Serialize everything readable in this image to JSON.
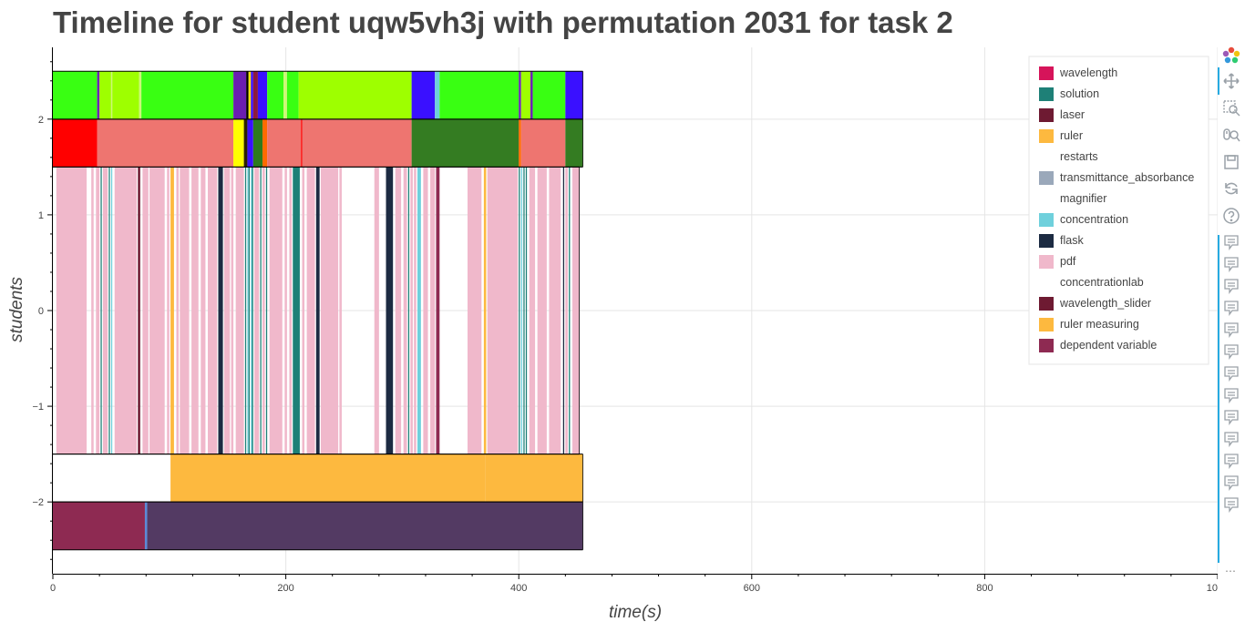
{
  "chart_data": {
    "type": "timeline",
    "title": "Timeline for student uqw5vh3j with permutation 2031 for task 2",
    "xlabel": "time(s)",
    "ylabel": "students",
    "xlim": [
      0,
      1000
    ],
    "ylim": [
      -2.75,
      2.75
    ],
    "xticks": [
      0,
      200,
      400,
      600,
      800,
      1000
    ],
    "yticks": [
      -2,
      -1,
      0,
      1,
      2
    ],
    "grid": true,
    "legend_position": "top-right",
    "legend": [
      {
        "name": "wavelength",
        "color": "#d6145a"
      },
      {
        "name": "solution",
        "color": "#1e8077"
      },
      {
        "name": "laser",
        "color": "#6e1a32"
      },
      {
        "name": "ruler",
        "color": "#fdb93f"
      },
      {
        "name": "restarts",
        "color": ""
      },
      {
        "name": "transmittance_absorbance",
        "color": "#9aa8ba"
      },
      {
        "name": "magnifier",
        "color": ""
      },
      {
        "name": "concentration",
        "color": "#6fd0dc"
      },
      {
        "name": "flask",
        "color": "#1c2b42"
      },
      {
        "name": "pdf",
        "color": "#f0b8cb"
      },
      {
        "name": "concentrationlab",
        "color": ""
      },
      {
        "name": "wavelength_slider",
        "color": "#6e1a32"
      },
      {
        "name": "ruler measuring",
        "color": "#fdb93f"
      },
      {
        "name": "dependent variable",
        "color": "#8e2a52"
      }
    ],
    "rows": [
      {
        "y_range": [
          2,
          2.5
        ],
        "segments": [
          {
            "start": 0,
            "end": 38,
            "color": "#39ff12"
          },
          {
            "start": 38,
            "end": 40,
            "color": "#6e22b8"
          },
          {
            "start": 40,
            "end": 50,
            "color": "#9eff00"
          },
          {
            "start": 50,
            "end": 51,
            "color": "#cdf777"
          },
          {
            "start": 51,
            "end": 74,
            "color": "#9eff00"
          },
          {
            "start": 74,
            "end": 76,
            "color": "#cdf777"
          },
          {
            "start": 76,
            "end": 155,
            "color": "#39ff12"
          },
          {
            "start": 155,
            "end": 166,
            "color": "#6a1eb0"
          },
          {
            "start": 166,
            "end": 168,
            "color": "#000000"
          },
          {
            "start": 168,
            "end": 170,
            "color": "#ffe400"
          },
          {
            "start": 170,
            "end": 172,
            "color": "#3a10ff"
          },
          {
            "start": 172,
            "end": 176,
            "color": "#8c1a3e"
          },
          {
            "start": 176,
            "end": 184,
            "color": "#3a10ff"
          },
          {
            "start": 184,
            "end": 198,
            "color": "#39ff12"
          },
          {
            "start": 198,
            "end": 201,
            "color": "#cdf777"
          },
          {
            "start": 201,
            "end": 211,
            "color": "#39ff12"
          },
          {
            "start": 211,
            "end": 308,
            "color": "#9eff00"
          },
          {
            "start": 308,
            "end": 328,
            "color": "#3a10ff"
          },
          {
            "start": 328,
            "end": 332,
            "color": "#6fd0dc"
          },
          {
            "start": 332,
            "end": 400,
            "color": "#39ff12"
          },
          {
            "start": 400,
            "end": 402,
            "color": "#6e22b8"
          },
          {
            "start": 402,
            "end": 410,
            "color": "#9eff00"
          },
          {
            "start": 410,
            "end": 412,
            "color": "#6e22b8"
          },
          {
            "start": 412,
            "end": 440,
            "color": "#39ff12"
          },
          {
            "start": 440,
            "end": 455,
            "color": "#3a10ff"
          }
        ]
      },
      {
        "y_range": [
          1.5,
          2
        ],
        "segments": [
          {
            "start": 0,
            "end": 38,
            "color": "#ff0000"
          },
          {
            "start": 38,
            "end": 155,
            "color": "#ee7570"
          },
          {
            "start": 155,
            "end": 164,
            "color": "#ffff00"
          },
          {
            "start": 164,
            "end": 167,
            "color": "#2d2200"
          },
          {
            "start": 167,
            "end": 172,
            "color": "#3a10ff"
          },
          {
            "start": 172,
            "end": 180,
            "color": "#2d7a1e"
          },
          {
            "start": 180,
            "end": 184,
            "color": "#ff6a00"
          },
          {
            "start": 184,
            "end": 213,
            "color": "#ee7570"
          },
          {
            "start": 213,
            "end": 214,
            "color": "#ff0000"
          },
          {
            "start": 214,
            "end": 308,
            "color": "#ee7570"
          },
          {
            "start": 308,
            "end": 400,
            "color": "#347c22"
          },
          {
            "start": 400,
            "end": 402,
            "color": "#ff6a00"
          },
          {
            "start": 402,
            "end": 440,
            "color": "#ee7570"
          },
          {
            "start": 440,
            "end": 455,
            "color": "#347c22"
          }
        ]
      },
      {
        "y_range": [
          -1.5,
          1.5
        ],
        "segments": [
          {
            "start": 3,
            "end": 29,
            "color": "#f0b8cb"
          },
          {
            "start": 33,
            "end": 35,
            "color": "#f0b8cb"
          },
          {
            "start": 37,
            "end": 40,
            "color": "#f0b8cb"
          },
          {
            "start": 41,
            "end": 42,
            "color": "#1e8077"
          },
          {
            "start": 43,
            "end": 47,
            "color": "#f0b8cb"
          },
          {
            "start": 48,
            "end": 49,
            "color": "#1e8077"
          },
          {
            "start": 50,
            "end": 51,
            "color": "#6fd0dc"
          },
          {
            "start": 53,
            "end": 72,
            "color": "#f0b8cb"
          },
          {
            "start": 73,
            "end": 75,
            "color": "#6e1a32"
          },
          {
            "start": 77,
            "end": 82,
            "color": "#f0b8cb"
          },
          {
            "start": 83,
            "end": 96,
            "color": "#f0b8cb"
          },
          {
            "start": 98,
            "end": 100,
            "color": "#f0b8cb"
          },
          {
            "start": 101,
            "end": 104,
            "color": "#fdb93f"
          },
          {
            "start": 106,
            "end": 108,
            "color": "#f0b8cb"
          },
          {
            "start": 109,
            "end": 117,
            "color": "#f0b8cb"
          },
          {
            "start": 119,
            "end": 125,
            "color": "#f0b8cb"
          },
          {
            "start": 127,
            "end": 131,
            "color": "#f0b8cb"
          },
          {
            "start": 133,
            "end": 141,
            "color": "#f0b8cb"
          },
          {
            "start": 142,
            "end": 146,
            "color": "#1c2b42"
          },
          {
            "start": 147,
            "end": 152,
            "color": "#f0b8cb"
          },
          {
            "start": 153,
            "end": 155,
            "color": "#f0b8cb"
          },
          {
            "start": 157,
            "end": 164,
            "color": "#f0b8cb"
          },
          {
            "start": 165,
            "end": 166,
            "color": "#1e8077"
          },
          {
            "start": 167,
            "end": 168,
            "color": "#6fd0dc"
          },
          {
            "start": 168,
            "end": 169,
            "color": "#1e8077"
          },
          {
            "start": 170,
            "end": 171,
            "color": "#6fd0dc"
          },
          {
            "start": 171,
            "end": 172,
            "color": "#1e8077"
          },
          {
            "start": 173,
            "end": 177,
            "color": "#f0b8cb"
          },
          {
            "start": 178,
            "end": 179,
            "color": "#1e8077"
          },
          {
            "start": 180,
            "end": 182,
            "color": "#f0b8cb"
          },
          {
            "start": 183,
            "end": 184,
            "color": "#1e8077"
          },
          {
            "start": 186,
            "end": 197,
            "color": "#f0b8cb"
          },
          {
            "start": 199,
            "end": 201,
            "color": "#f0b8cb"
          },
          {
            "start": 203,
            "end": 205,
            "color": "#f0b8cb"
          },
          {
            "start": 206,
            "end": 212,
            "color": "#1e8077"
          },
          {
            "start": 214,
            "end": 216,
            "color": "#f0b8cb"
          },
          {
            "start": 218,
            "end": 225,
            "color": "#f0b8cb"
          },
          {
            "start": 226,
            "end": 229,
            "color": "#1c2b42"
          },
          {
            "start": 230,
            "end": 245,
            "color": "#f0b8cb"
          },
          {
            "start": 246,
            "end": 248,
            "color": "#f0b8cb"
          },
          {
            "start": 276,
            "end": 280,
            "color": "#f0b8cb"
          },
          {
            "start": 286,
            "end": 292,
            "color": "#1c2b42"
          },
          {
            "start": 294,
            "end": 299,
            "color": "#f0b8cb"
          },
          {
            "start": 301,
            "end": 304,
            "color": "#f0b8cb"
          },
          {
            "start": 305,
            "end": 306,
            "color": "#1e8077"
          },
          {
            "start": 307,
            "end": 309,
            "color": "#f0b8cb"
          },
          {
            "start": 310,
            "end": 312,
            "color": "#f0b8cb"
          },
          {
            "start": 313,
            "end": 316,
            "color": "#6fd0dc"
          },
          {
            "start": 318,
            "end": 322,
            "color": "#f0b8cb"
          },
          {
            "start": 324,
            "end": 328,
            "color": "#f0b8cb"
          },
          {
            "start": 329,
            "end": 332,
            "color": "#8e2a52"
          },
          {
            "start": 356,
            "end": 368,
            "color": "#f0b8cb"
          },
          {
            "start": 370,
            "end": 372,
            "color": "#fdb93f"
          },
          {
            "start": 373,
            "end": 399,
            "color": "#f0b8cb"
          },
          {
            "start": 400,
            "end": 401,
            "color": "#1e8077"
          },
          {
            "start": 402,
            "end": 403,
            "color": "#6fd0dc"
          },
          {
            "start": 404,
            "end": 405,
            "color": "#1e8077"
          },
          {
            "start": 406,
            "end": 407,
            "color": "#1e8077"
          },
          {
            "start": 409,
            "end": 414,
            "color": "#f0b8cb"
          },
          {
            "start": 416,
            "end": 424,
            "color": "#f0b8cb"
          },
          {
            "start": 426,
            "end": 436,
            "color": "#f0b8cb"
          },
          {
            "start": 438,
            "end": 439,
            "color": "#1c2b42"
          },
          {
            "start": 440,
            "end": 442,
            "color": "#f0b8cb"
          },
          {
            "start": 443,
            "end": 444,
            "color": "#1e8077"
          },
          {
            "start": 446,
            "end": 452,
            "color": "#f0b8cb"
          }
        ]
      },
      {
        "y_range": [
          -2,
          -1.5
        ],
        "segments": [
          {
            "start": 101,
            "end": 371,
            "color": "#fdb93f"
          },
          {
            "start": 371,
            "end": 455,
            "color": "#fdb93f"
          }
        ]
      },
      {
        "y_range": [
          -2.5,
          -2
        ],
        "segments": [
          {
            "start": 0,
            "end": 79,
            "color": "#8e2a52"
          },
          {
            "start": 79,
            "end": 81,
            "color": "#5b8ad6"
          },
          {
            "start": 81,
            "end": 455,
            "color": "#533a63"
          }
        ]
      }
    ]
  },
  "toolbar": {
    "tools": [
      {
        "name": "bokeh-logo-icon",
        "interactable": false
      },
      {
        "name": "pan-tool-icon",
        "interactable": true
      },
      {
        "name": "box-zoom-tool-icon",
        "interactable": true
      },
      {
        "name": "wheel-zoom-tool-icon",
        "interactable": true
      },
      {
        "name": "save-tool-icon",
        "interactable": true
      },
      {
        "name": "reset-tool-icon",
        "interactable": true
      },
      {
        "name": "help-tool-icon",
        "interactable": true
      },
      {
        "name": "hover-tool-icon",
        "interactable": true,
        "count": 13
      }
    ]
  }
}
